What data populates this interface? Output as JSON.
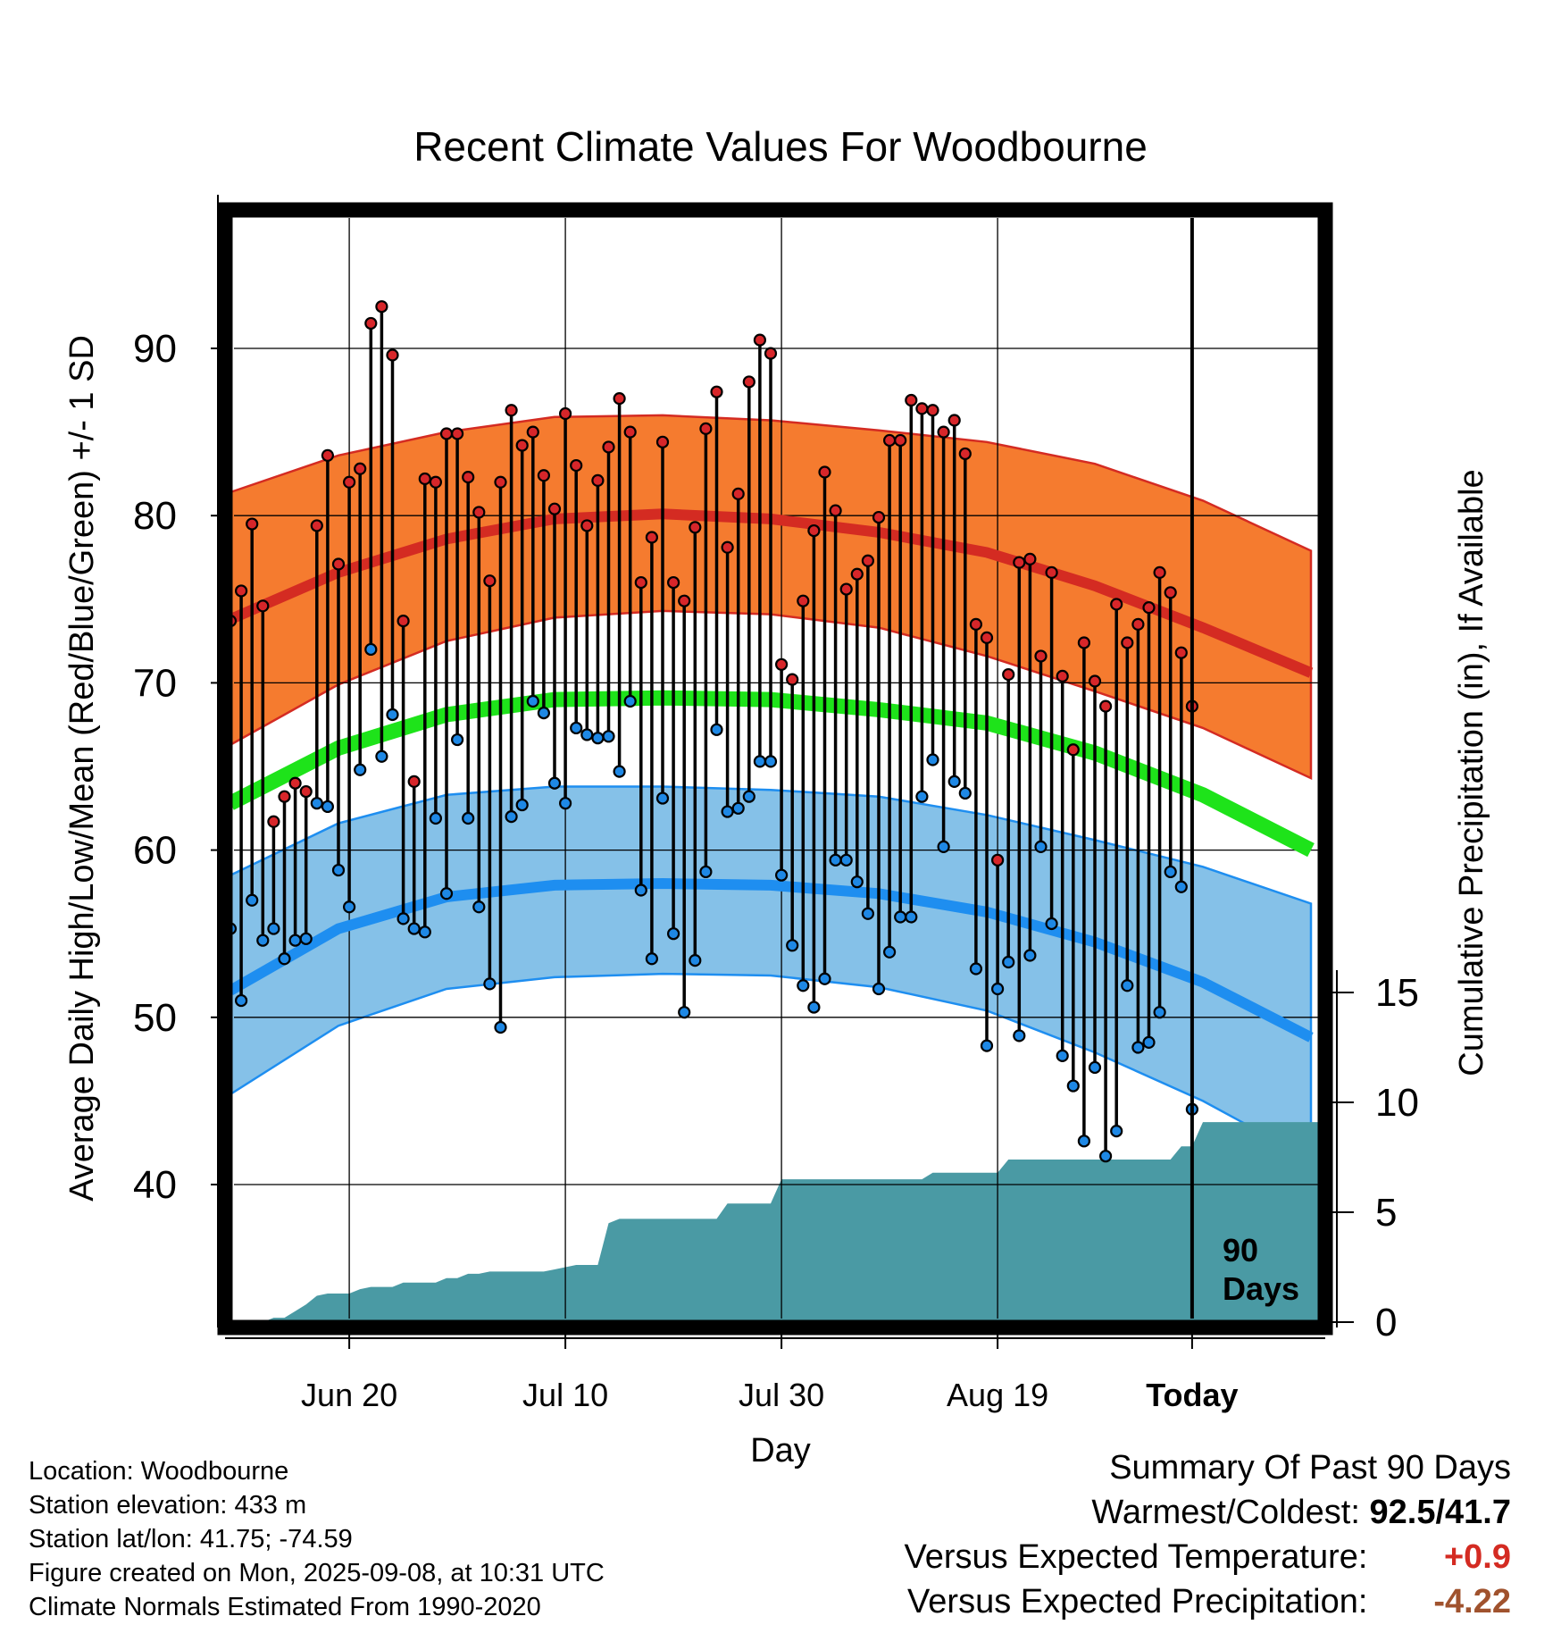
{
  "chart_data": {
    "type": "line",
    "title": "Recent Climate Values For Woodbourne",
    "xlabel": "Day",
    "ylabel": "Average Daily High/Low/Mean (Red/Blue/Green) +/- 1 SD",
    "y2label": "Cumulative Precipitation (in), If Available",
    "x_start": "2025-06-09",
    "x_ticks": [
      "Jun 20",
      "Jul 10",
      "Jul 30",
      "Aug 19",
      "Today"
    ],
    "ylim": [
      31,
      98
    ],
    "y_ticks": [
      40,
      50,
      60,
      70,
      80,
      90
    ],
    "y2lim": [
      0,
      30
    ],
    "y2_ticks": [
      0,
      5,
      10,
      15
    ],
    "today_label": [
      "90",
      "Days"
    ],
    "colors": {
      "high_band": "#f57b2f",
      "high_line": "#d42b22",
      "mean_line": "#1ee31a",
      "low_band": "#85c1e8",
      "low_line": "#1e8ef0",
      "precip": "#4a9aa4",
      "high_dot": "#d7262a",
      "low_dot": "#1e88e5"
    },
    "normals": {
      "x": [
        "2025-06-09",
        "2025-06-19",
        "2025-06-29",
        "2025-07-09",
        "2025-07-19",
        "2025-07-29",
        "2025-08-08",
        "2025-08-18",
        "2025-08-28",
        "2025-09-07",
        "2025-09-17"
      ],
      "high_mean": [
        73.8,
        76.6,
        78.6,
        79.8,
        80.1,
        79.8,
        79.0,
        77.8,
        75.8,
        73.3,
        70.6
      ],
      "high_plus_sd": [
        81.4,
        83.6,
        85.0,
        85.9,
        86.0,
        85.7,
        85.1,
        84.4,
        83.1,
        80.9,
        77.9
      ],
      "high_minus_sd": [
        66.3,
        69.9,
        72.5,
        73.9,
        74.3,
        74.1,
        73.3,
        71.6,
        69.5,
        67.3,
        64.3
      ],
      "mean": [
        62.8,
        66.1,
        68.1,
        69.0,
        69.1,
        69.0,
        68.4,
        67.6,
        65.8,
        63.3,
        60.0
      ],
      "low_mean": [
        51.6,
        55.3,
        57.2,
        57.9,
        58.0,
        57.9,
        57.4,
        56.3,
        54.5,
        52.1,
        48.8
      ],
      "low_plus_sd": [
        58.5,
        61.6,
        63.3,
        63.8,
        63.8,
        63.6,
        63.2,
        62.1,
        60.6,
        59.0,
        56.8
      ],
      "low_minus_sd": [
        45.4,
        49.5,
        51.7,
        52.4,
        52.6,
        52.5,
        51.8,
        50.4,
        47.9,
        45.0,
        41.5
      ]
    },
    "daily": {
      "x": [
        "2025-06-09",
        "2025-06-10",
        "2025-06-11",
        "2025-06-12",
        "2025-06-13",
        "2025-06-14",
        "2025-06-15",
        "2025-06-16",
        "2025-06-17",
        "2025-06-18",
        "2025-06-19",
        "2025-06-20",
        "2025-06-21",
        "2025-06-22",
        "2025-06-23",
        "2025-06-24",
        "2025-06-25",
        "2025-06-26",
        "2025-06-27",
        "2025-06-28",
        "2025-06-29",
        "2025-06-30",
        "2025-07-01",
        "2025-07-02",
        "2025-07-03",
        "2025-07-04",
        "2025-07-05",
        "2025-07-06",
        "2025-07-07",
        "2025-07-08",
        "2025-07-09",
        "2025-07-10",
        "2025-07-11",
        "2025-07-12",
        "2025-07-13",
        "2025-07-14",
        "2025-07-15",
        "2025-07-16",
        "2025-07-17",
        "2025-07-18",
        "2025-07-19",
        "2025-07-20",
        "2025-07-21",
        "2025-07-22",
        "2025-07-23",
        "2025-07-24",
        "2025-07-25",
        "2025-07-26",
        "2025-07-27",
        "2025-07-28",
        "2025-07-29",
        "2025-07-30",
        "2025-07-31",
        "2025-08-01",
        "2025-08-02",
        "2025-08-03",
        "2025-08-04",
        "2025-08-05",
        "2025-08-06",
        "2025-08-07",
        "2025-08-08",
        "2025-08-09",
        "2025-08-10",
        "2025-08-11",
        "2025-08-12",
        "2025-08-13",
        "2025-08-14",
        "2025-08-15",
        "2025-08-16",
        "2025-08-17",
        "2025-08-18",
        "2025-08-19",
        "2025-08-20",
        "2025-08-21",
        "2025-08-22",
        "2025-08-23",
        "2025-08-24",
        "2025-08-25",
        "2025-08-26",
        "2025-08-27",
        "2025-08-28",
        "2025-08-29",
        "2025-08-30",
        "2025-08-31",
        "2025-09-01",
        "2025-09-02",
        "2025-09-03",
        "2025-09-04",
        "2025-09-05",
        "2025-09-06",
        "2025-09-07"
      ],
      "high": [
        73.7,
        75.5,
        79.5,
        74.6,
        61.7,
        63.2,
        64.0,
        63.5,
        79.4,
        83.6,
        77.1,
        82.0,
        82.8,
        91.5,
        92.5,
        89.6,
        73.7,
        64.1,
        82.2,
        82.0,
        84.9,
        84.9,
        82.3,
        80.2,
        76.1,
        82.0,
        86.3,
        84.2,
        85.0,
        82.4,
        80.4,
        86.1,
        83.0,
        79.4,
        82.1,
        84.1,
        87.0,
        85.0,
        76.0,
        78.7,
        84.4,
        76.0,
        74.9,
        79.3,
        85.2,
        87.4,
        78.1,
        81.3,
        88.0,
        90.5,
        89.7,
        71.1,
        70.2,
        74.9,
        79.1,
        82.6,
        80.3,
        75.6,
        76.5,
        77.3,
        79.9,
        84.5,
        84.5,
        86.9,
        86.4,
        86.3,
        85.0,
        85.7,
        83.7,
        73.5,
        72.7,
        59.4,
        70.5,
        77.2,
        77.4,
        71.6,
        76.6,
        70.4,
        66.0,
        72.4,
        70.1,
        68.6,
        74.7,
        72.4,
        73.5,
        74.5,
        76.6,
        75.4,
        71.8,
        68.6,
        null
      ],
      "low": [
        55.3,
        51.0,
        57.0,
        54.6,
        55.3,
        53.5,
        54.6,
        54.7,
        62.8,
        62.6,
        58.8,
        56.6,
        64.8,
        72.0,
        65.6,
        68.1,
        55.9,
        55.3,
        55.1,
        61.9,
        57.4,
        66.6,
        61.9,
        56.6,
        52.0,
        49.4,
        62.0,
        62.7,
        68.9,
        68.2,
        64.0,
        62.8,
        67.3,
        66.9,
        66.7,
        66.8,
        64.7,
        68.9,
        57.6,
        53.5,
        63.1,
        55.0,
        50.3,
        53.4,
        58.7,
        67.2,
        62.3,
        62.5,
        63.2,
        65.3,
        65.3,
        58.5,
        54.3,
        51.9,
        50.6,
        52.3,
        59.4,
        59.4,
        58.1,
        56.2,
        51.7,
        53.9,
        56.0,
        56.0,
        63.2,
        65.4,
        60.2,
        64.1,
        63.4,
        52.9,
        48.3,
        51.7,
        53.3,
        48.9,
        53.7,
        60.2,
        55.6,
        47.7,
        45.9,
        42.6,
        47.0,
        41.7,
        43.2,
        51.9,
        48.2,
        48.5,
        50.3,
        58.7,
        57.8,
        44.5,
        null
      ]
    },
    "precip": {
      "x": [
        "2025-06-09",
        "2025-06-12",
        "2025-06-13",
        "2025-06-14",
        "2025-06-15",
        "2025-06-16",
        "2025-06-17",
        "2025-06-18",
        "2025-06-19",
        "2025-06-20",
        "2025-06-21",
        "2025-06-22",
        "2025-06-23",
        "2025-06-24",
        "2025-06-25",
        "2025-06-26",
        "2025-06-27",
        "2025-06-28",
        "2025-06-29",
        "2025-06-30",
        "2025-07-01",
        "2025-07-02",
        "2025-07-03",
        "2025-07-04",
        "2025-07-05",
        "2025-07-06",
        "2025-07-07",
        "2025-07-08",
        "2025-07-09",
        "2025-07-10",
        "2025-07-11",
        "2025-07-12",
        "2025-07-13",
        "2025-07-14",
        "2025-07-15",
        "2025-07-16",
        "2025-07-17",
        "2025-07-18",
        "2025-07-19",
        "2025-07-20",
        "2025-07-21",
        "2025-07-22",
        "2025-07-23",
        "2025-07-24",
        "2025-07-25",
        "2025-07-26",
        "2025-07-27",
        "2025-07-28",
        "2025-07-29",
        "2025-07-30",
        "2025-07-31",
        "2025-08-01",
        "2025-08-02",
        "2025-08-03",
        "2025-08-04",
        "2025-08-05",
        "2025-08-06",
        "2025-08-07",
        "2025-08-08",
        "2025-08-09",
        "2025-08-10",
        "2025-08-11",
        "2025-08-12",
        "2025-08-13",
        "2025-08-14",
        "2025-08-15",
        "2025-08-16",
        "2025-08-17",
        "2025-08-18",
        "2025-08-19",
        "2025-08-20",
        "2025-08-21",
        "2025-08-22",
        "2025-08-23",
        "2025-08-24",
        "2025-08-25",
        "2025-08-26",
        "2025-08-27",
        "2025-08-28",
        "2025-08-29",
        "2025-08-30",
        "2025-08-31",
        "2025-09-01",
        "2025-09-02",
        "2025-09-03",
        "2025-09-04",
        "2025-09-05",
        "2025-09-06",
        "2025-09-07",
        "2025-09-17"
      ],
      "values": [
        0.0,
        0.0,
        0.2,
        0.2,
        0.5,
        0.8,
        1.2,
        1.3,
        1.3,
        1.3,
        1.5,
        1.6,
        1.6,
        1.6,
        1.8,
        1.8,
        1.8,
        1.8,
        2.0,
        2.0,
        2.2,
        2.2,
        2.3,
        2.3,
        2.3,
        2.3,
        2.3,
        2.3,
        2.4,
        2.5,
        2.6,
        2.6,
        2.6,
        4.5,
        4.7,
        4.7,
        4.7,
        4.7,
        4.7,
        4.7,
        4.7,
        4.7,
        4.7,
        4.7,
        5.4,
        5.4,
        5.4,
        5.4,
        5.4,
        6.5,
        6.5,
        6.5,
        6.5,
        6.5,
        6.5,
        6.5,
        6.5,
        6.5,
        6.5,
        6.5,
        6.5,
        6.5,
        6.5,
        6.8,
        6.8,
        6.8,
        6.8,
        6.8,
        6.8,
        6.8,
        7.4,
        7.4,
        7.4,
        7.4,
        7.4,
        7.4,
        7.4,
        7.4,
        7.4,
        7.4,
        7.4,
        7.4,
        7.4,
        7.4,
        7.4,
        7.4,
        8.0,
        8.0,
        9.1,
        9.1
      ]
    }
  },
  "info": {
    "location": "Location: Woodbourne",
    "elevation": "Station elevation: 433 m",
    "latlon": "Station lat/lon: 41.75; -74.59",
    "created": "Figure created on Mon, 2025-09-08, at 10:31 UTC",
    "normals": "Climate Normals Estimated From 1990-2020"
  },
  "summary": {
    "title": "Summary Of Past 90 Days",
    "warm_cold_label": "Warmest/Coldest:",
    "warmest": "92.5",
    "sep": "/",
    "coldest": "41.7",
    "temp_label": "Versus Expected Temperature:",
    "temp_value": "+0.9",
    "temp_color": "#d42b22",
    "precip_label": "Versus Expected Precipitation:",
    "precip_value": "-4.22",
    "precip_color": "#a0522d"
  }
}
